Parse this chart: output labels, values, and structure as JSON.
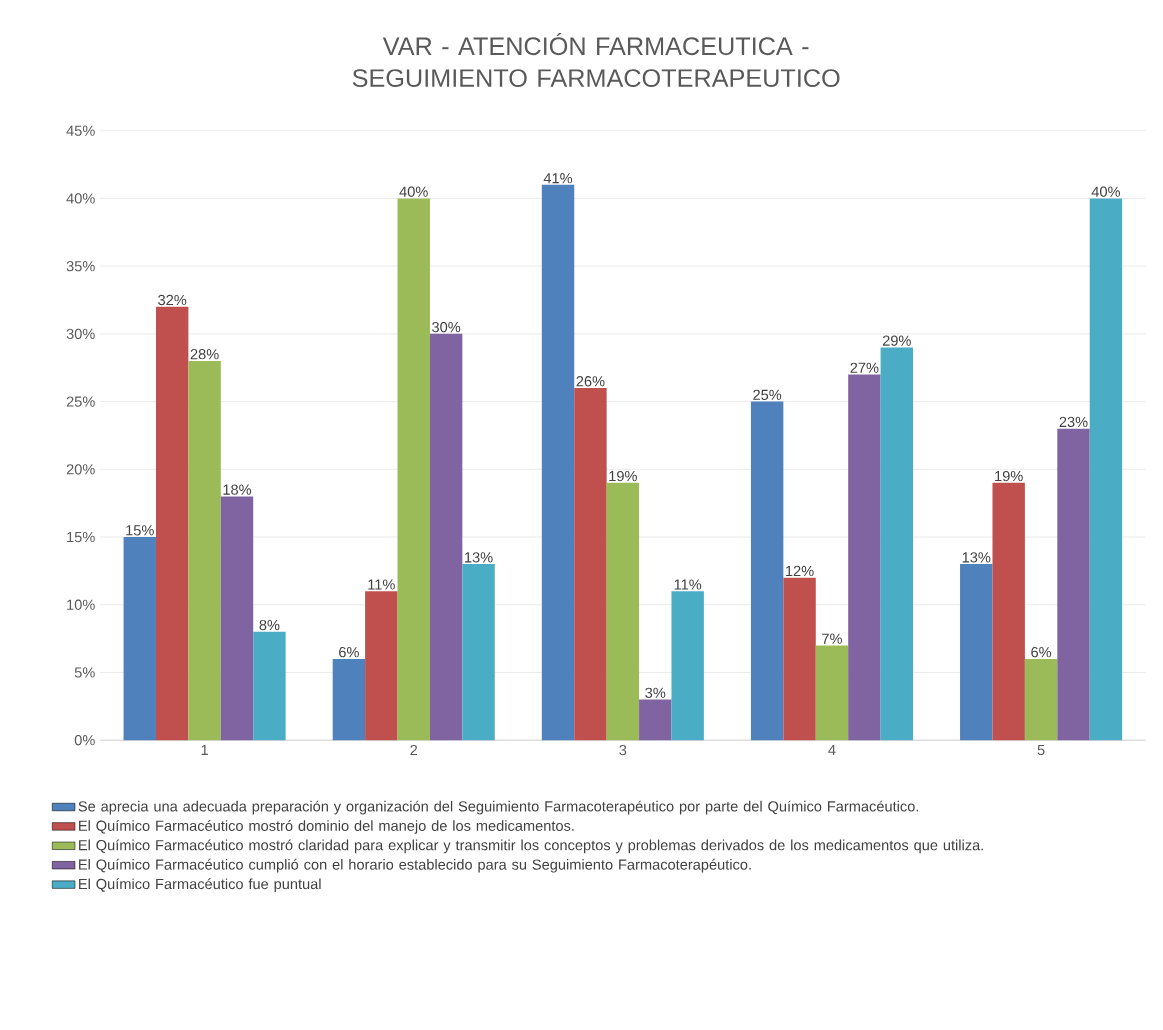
{
  "chart_data": {
    "type": "bar",
    "title": "VAR - ATENCIÓN FARMACEUTICA  -  SEGUIMIENTO FARMACOTERAPEUTICO",
    "categories": [
      "1",
      "2",
      "3",
      "4",
      "5"
    ],
    "series": [
      {
        "name": "Se aprecia una adecuada preparación y organización del Seguimiento Farmacoterapéutico por parte del Químico Farmacéutico.",
        "color": "#4f81bd",
        "values": [
          15,
          6,
          41,
          25,
          13
        ],
        "value_labels": [
          "15%",
          "6%",
          "41%",
          "25%",
          "13%"
        ]
      },
      {
        "name": "El Químico Farmacéutico mostró dominio del manejo de los medicamentos.",
        "color": "#c0504d",
        "values": [
          32,
          11,
          26,
          12,
          19
        ],
        "value_labels": [
          "32%",
          "11%",
          "26%",
          "12%",
          "19%"
        ]
      },
      {
        "name": "El Químico Farmacéutico mostró claridad para explicar y transmitir los conceptos y problemas derivados de los medicamentos que utiliza.",
        "color": "#9bbb59",
        "values": [
          28,
          40,
          19,
          7,
          6
        ],
        "value_labels": [
          "28%",
          "40%",
          "19%",
          "7%",
          "6%"
        ]
      },
      {
        "name": "El Químico Farmacéutico cumplió con el horario establecido para su Seguimiento Farmacoterapéutico.",
        "color": "#8064a2",
        "values": [
          18,
          30,
          3,
          27,
          23
        ],
        "value_labels": [
          "18%",
          "30%",
          "3%",
          "27%",
          "23%"
        ]
      },
      {
        "name": "El Químico Farmacéutico fue puntual",
        "color": "#4bacc6",
        "values": [
          8,
          13,
          11,
          29,
          40
        ],
        "value_labels": [
          "8%",
          "13%",
          "11%",
          "29%",
          "40%"
        ]
      }
    ],
    "ylim": [
      0,
      45
    ],
    "yticks": [
      {
        "value": 0,
        "label": "0%"
      },
      {
        "value": 5,
        "label": "5%"
      },
      {
        "value": 10,
        "label": "10%"
      },
      {
        "value": 15,
        "label": "15%"
      },
      {
        "value": 20,
        "label": "20%"
      },
      {
        "value": 25,
        "label": "25%"
      },
      {
        "value": 30,
        "label": "30%"
      },
      {
        "value": 35,
        "label": "35%"
      },
      {
        "value": 40,
        "label": "40%"
      },
      {
        "value": 45,
        "label": "45%"
      }
    ],
    "grid": "y",
    "legend": "bottom"
  }
}
